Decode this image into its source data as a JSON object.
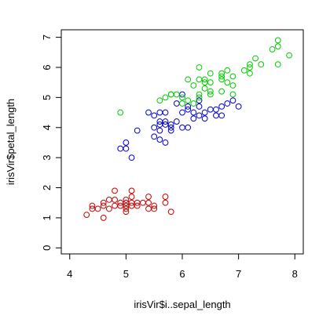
{
  "chart_data": {
    "type": "scatter",
    "xlabel": "irisVir$i..sepal_length",
    "ylabel": "irisVir$petal_length",
    "xlim": [
      3.85,
      8.15
    ],
    "ylim": [
      -0.2,
      7.25
    ],
    "x_ticks": [
      4,
      5,
      6,
      7,
      8
    ],
    "y_ticks": [
      0,
      1,
      2,
      3,
      4,
      5,
      6,
      7
    ],
    "grid": false,
    "legend": "none",
    "marker": "open-circle",
    "series": [
      {
        "color": "#cc0000",
        "points": [
          [
            4.3,
            1.1
          ],
          [
            4.4,
            1.3
          ],
          [
            4.4,
            1.4
          ],
          [
            4.5,
            1.3
          ],
          [
            4.6,
            1.0
          ],
          [
            4.6,
            1.4
          ],
          [
            4.6,
            1.5
          ],
          [
            4.7,
            1.3
          ],
          [
            4.7,
            1.6
          ],
          [
            4.8,
            1.4
          ],
          [
            4.8,
            1.6
          ],
          [
            4.8,
            1.9
          ],
          [
            4.9,
            1.4
          ],
          [
            4.9,
            1.5
          ],
          [
            5.0,
            1.2
          ],
          [
            5.0,
            1.3
          ],
          [
            5.0,
            1.4
          ],
          [
            5.0,
            1.5
          ],
          [
            5.0,
            1.6
          ],
          [
            5.1,
            1.4
          ],
          [
            5.1,
            1.5
          ],
          [
            5.1,
            1.7
          ],
          [
            5.1,
            1.9
          ],
          [
            5.2,
            1.4
          ],
          [
            5.2,
            1.5
          ],
          [
            5.3,
            1.5
          ],
          [
            5.4,
            1.3
          ],
          [
            5.4,
            1.5
          ],
          [
            5.4,
            1.7
          ],
          [
            5.5,
            1.3
          ],
          [
            5.5,
            1.4
          ],
          [
            5.7,
            1.5
          ],
          [
            5.7,
            1.7
          ],
          [
            5.8,
            1.2
          ]
        ]
      },
      {
        "color": "#0000cc",
        "points": [
          [
            4.9,
            3.3
          ],
          [
            5.0,
            3.3
          ],
          [
            5.0,
            3.5
          ],
          [
            5.1,
            3.0
          ],
          [
            5.2,
            3.9
          ],
          [
            5.4,
            4.5
          ],
          [
            5.5,
            3.7
          ],
          [
            5.5,
            4.0
          ],
          [
            5.5,
            4.4
          ],
          [
            5.6,
            3.6
          ],
          [
            5.6,
            3.9
          ],
          [
            5.6,
            4.1
          ],
          [
            5.6,
            4.2
          ],
          [
            5.6,
            4.5
          ],
          [
            5.7,
            3.5
          ],
          [
            5.7,
            4.1
          ],
          [
            5.7,
            4.2
          ],
          [
            5.7,
            4.5
          ],
          [
            5.8,
            3.9
          ],
          [
            5.8,
            4.0
          ],
          [
            5.8,
            4.1
          ],
          [
            5.9,
            4.2
          ],
          [
            5.9,
            4.8
          ],
          [
            6.0,
            4.0
          ],
          [
            6.0,
            4.5
          ],
          [
            6.0,
            5.1
          ],
          [
            6.1,
            4.0
          ],
          [
            6.1,
            4.6
          ],
          [
            6.1,
            4.7
          ],
          [
            6.2,
            4.3
          ],
          [
            6.2,
            4.5
          ],
          [
            6.3,
            4.4
          ],
          [
            6.3,
            4.7
          ],
          [
            6.3,
            4.9
          ],
          [
            6.4,
            4.3
          ],
          [
            6.4,
            4.5
          ],
          [
            6.5,
            4.6
          ],
          [
            6.6,
            4.4
          ],
          [
            6.6,
            4.6
          ],
          [
            6.7,
            4.4
          ],
          [
            6.7,
            4.7
          ],
          [
            6.8,
            4.8
          ],
          [
            6.9,
            4.9
          ],
          [
            7.0,
            4.7
          ]
        ]
      },
      {
        "color": "#00cc00",
        "points": [
          [
            4.9,
            4.5
          ],
          [
            5.6,
            4.9
          ],
          [
            5.7,
            5.0
          ],
          [
            5.8,
            5.1
          ],
          [
            5.8,
            5.1
          ],
          [
            5.9,
            5.1
          ],
          [
            6.0,
            4.8
          ],
          [
            6.0,
            5.0
          ],
          [
            6.1,
            4.9
          ],
          [
            6.1,
            5.6
          ],
          [
            6.2,
            4.8
          ],
          [
            6.2,
            5.4
          ],
          [
            6.3,
            5.0
          ],
          [
            6.3,
            5.1
          ],
          [
            6.3,
            5.6
          ],
          [
            6.3,
            6.0
          ],
          [
            6.4,
            5.3
          ],
          [
            6.4,
            5.5
          ],
          [
            6.4,
            5.6
          ],
          [
            6.5,
            5.1
          ],
          [
            6.5,
            5.2
          ],
          [
            6.5,
            5.5
          ],
          [
            6.5,
            5.8
          ],
          [
            6.7,
            5.2
          ],
          [
            6.7,
            5.6
          ],
          [
            6.7,
            5.7
          ],
          [
            6.7,
            5.8
          ],
          [
            6.8,
            5.5
          ],
          [
            6.8,
            5.9
          ],
          [
            6.9,
            5.1
          ],
          [
            6.9,
            5.4
          ],
          [
            6.9,
            5.7
          ],
          [
            7.1,
            5.9
          ],
          [
            7.2,
            5.8
          ],
          [
            7.2,
            6.0
          ],
          [
            7.2,
            6.1
          ],
          [
            7.3,
            6.3
          ],
          [
            7.4,
            6.1
          ],
          [
            7.6,
            6.6
          ],
          [
            7.7,
            6.1
          ],
          [
            7.7,
            6.7
          ],
          [
            7.7,
            6.9
          ],
          [
            7.9,
            6.4
          ]
        ]
      }
    ]
  }
}
